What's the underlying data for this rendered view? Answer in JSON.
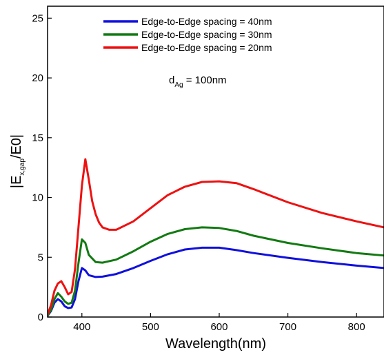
{
  "chart_data": {
    "type": "line",
    "xlabel": "Wavelength(nm)",
    "ylabel": {
      "main": "|E",
      "sub": "x,gap",
      "tail": "/E0|"
    },
    "annotation": {
      "main": "d",
      "sub": "Ag",
      "tail": " = 100nm"
    },
    "xlim": [
      350,
      840
    ],
    "ylim": [
      0,
      26
    ],
    "x_ticks": [
      400,
      500,
      600,
      700,
      800
    ],
    "y_ticks": [
      0,
      5,
      10,
      15,
      20,
      25
    ],
    "legend_position": "top-center",
    "grid": false,
    "series": [
      {
        "name": "Edge-to-Edge spacing = 40nm",
        "color": "#1010dd",
        "x": [
          350,
          355,
          360,
          365,
          370,
          375,
          380,
          385,
          390,
          395,
          400,
          405,
          410,
          420,
          430,
          450,
          475,
          500,
          525,
          550,
          575,
          600,
          625,
          650,
          700,
          750,
          800,
          840
        ],
        "y": [
          0.1,
          0.5,
          1.2,
          1.5,
          1.3,
          0.9,
          0.75,
          0.8,
          1.5,
          3.0,
          4.1,
          3.9,
          3.5,
          3.35,
          3.38,
          3.6,
          4.1,
          4.7,
          5.25,
          5.65,
          5.8,
          5.8,
          5.6,
          5.35,
          4.95,
          4.6,
          4.3,
          4.1
        ]
      },
      {
        "name": "Edge-to-Edge spacing = 30nm",
        "color": "#127a12",
        "x": [
          350,
          355,
          360,
          365,
          370,
          375,
          380,
          385,
          390,
          395,
          400,
          405,
          410,
          420,
          430,
          450,
          475,
          500,
          525,
          550,
          575,
          600,
          625,
          650,
          700,
          750,
          800,
          840
        ],
        "y": [
          0.1,
          0.6,
          1.5,
          2.0,
          1.7,
          1.3,
          1.1,
          1.2,
          2.2,
          4.5,
          6.5,
          6.2,
          5.2,
          4.6,
          4.55,
          4.8,
          5.5,
          6.3,
          6.95,
          7.35,
          7.5,
          7.45,
          7.2,
          6.8,
          6.2,
          5.75,
          5.35,
          5.15
        ]
      },
      {
        "name": "Edge-to-Edge spacing = 20nm",
        "color": "#ee1111",
        "x": [
          350,
          355,
          360,
          365,
          370,
          375,
          380,
          385,
          390,
          395,
          400,
          405,
          410,
          415,
          420,
          425,
          430,
          440,
          450,
          475,
          500,
          525,
          550,
          575,
          600,
          625,
          650,
          700,
          750,
          800,
          840
        ],
        "y": [
          0.2,
          1.0,
          2.2,
          2.8,
          3.0,
          2.5,
          1.9,
          2.1,
          4.0,
          7.5,
          11.0,
          13.2,
          11.5,
          9.7,
          8.6,
          7.9,
          7.5,
          7.3,
          7.3,
          8.0,
          9.1,
          10.2,
          10.9,
          11.3,
          11.35,
          11.2,
          10.7,
          9.6,
          8.7,
          8.0,
          7.5
        ]
      }
    ]
  }
}
